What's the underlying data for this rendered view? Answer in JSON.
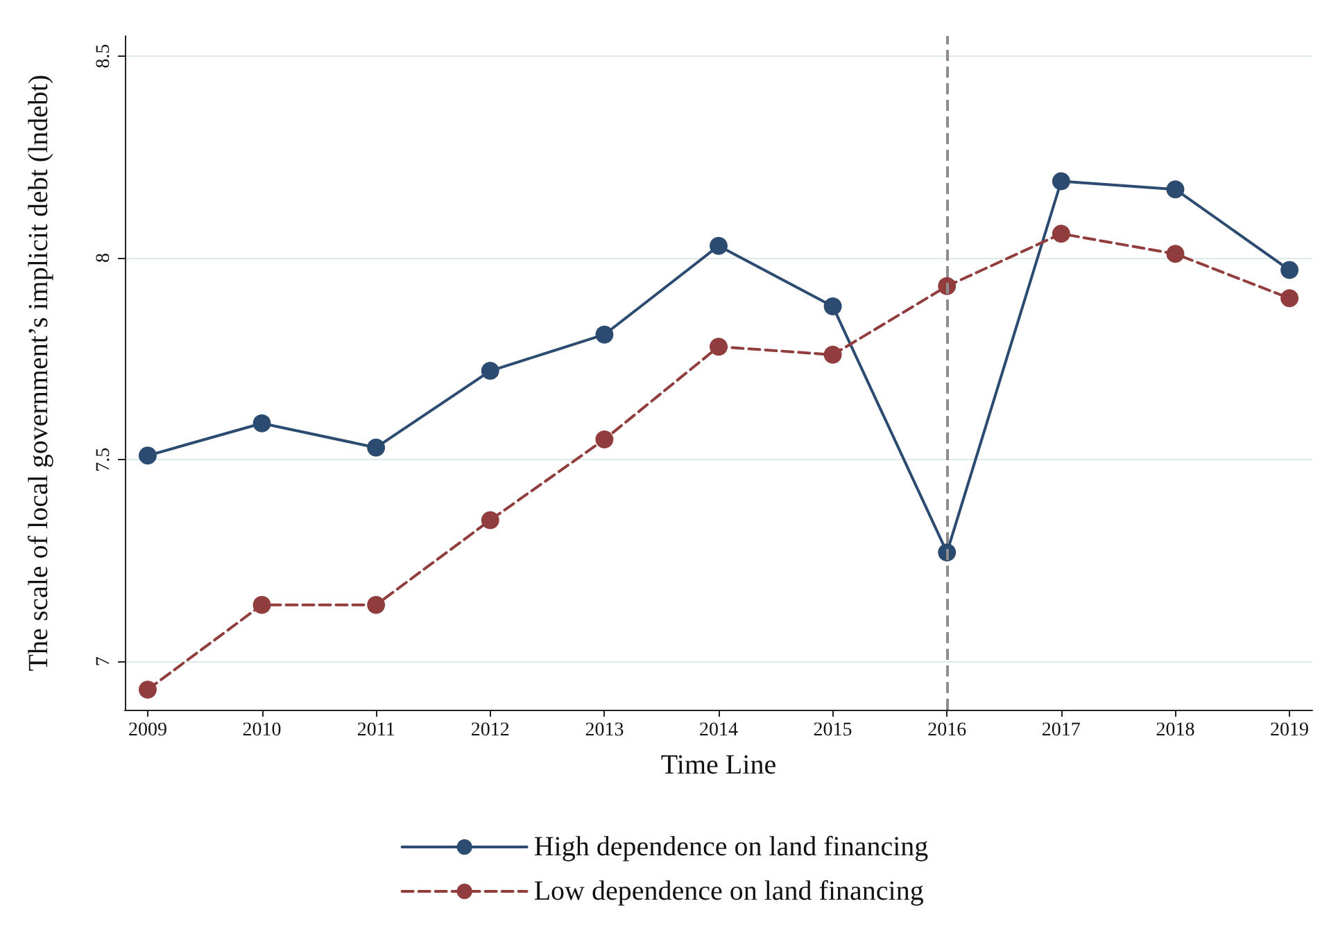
{
  "chart_data": {
    "type": "line",
    "xlabel": "Time Line",
    "ylabel": "The scale of local government’s implicit debt (lndebt)",
    "x": [
      2009,
      2010,
      2011,
      2012,
      2013,
      2014,
      2015,
      2016,
      2017,
      2018,
      2019
    ],
    "xlim": [
      2008.8,
      2019.2
    ],
    "xticks": [
      2009,
      2010,
      2011,
      2012,
      2013,
      2014,
      2015,
      2016,
      2017,
      2018,
      2019
    ],
    "ylim": [
      6.88,
      8.55
    ],
    "yticks": [
      7,
      7.5,
      8,
      8.5
    ],
    "series": [
      {
        "name": "High dependence on land financing",
        "color": "#2c4b70",
        "line_style": "solid",
        "values": [
          7.51,
          7.59,
          7.53,
          7.72,
          7.81,
          8.03,
          7.88,
          7.27,
          8.19,
          8.17,
          7.97
        ]
      },
      {
        "name": "Low dependence on land financing",
        "color": "#913d3d",
        "line_style": "dashed",
        "values": [
          6.93,
          7.14,
          7.14,
          7.35,
          7.55,
          7.78,
          7.76,
          7.93,
          8.06,
          8.01,
          7.9
        ]
      }
    ],
    "ref_lines": [
      {
        "axis": "x",
        "value": 2016,
        "color": "#8c8c8c",
        "line_style": "dashed"
      }
    ],
    "marker": "circle",
    "grid": "y",
    "legend": "bottom"
  }
}
